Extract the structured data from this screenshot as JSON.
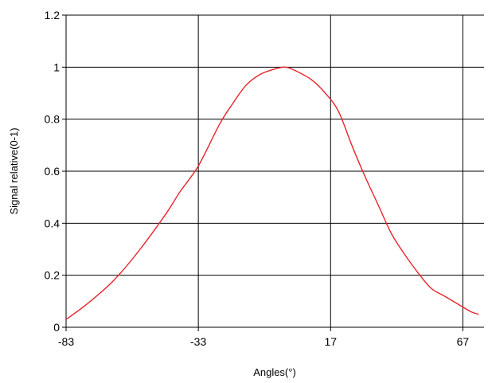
{
  "chart_data": {
    "type": "line",
    "title": "",
    "xlabel": "Angles(°)",
    "ylabel": "Signal relative(0-1)",
    "xlim": [
      -83,
      75
    ],
    "ylim": [
      0,
      1.2
    ],
    "x_ticks": [
      -83,
      -33,
      17,
      67
    ],
    "y_ticks": [
      0,
      0.2,
      0.4,
      0.6,
      0.8,
      1,
      1.2
    ],
    "grid": true,
    "legend": "none",
    "series": [
      {
        "color": "#e8232b",
        "x": [
          -83,
          -75,
          -65,
          -55,
          -45,
          -40,
          -33,
          -25,
          -20,
          -15,
          -10,
          -5,
          0,
          5,
          10,
          15,
          20,
          25,
          30,
          35,
          40,
          45,
          50,
          55,
          60,
          65,
          70,
          73
        ],
        "y": [
          0.03,
          0.09,
          0.18,
          0.3,
          0.44,
          0.52,
          0.62,
          0.78,
          0.86,
          0.93,
          0.97,
          0.99,
          1.0,
          0.98,
          0.95,
          0.9,
          0.83,
          0.7,
          0.58,
          0.47,
          0.36,
          0.28,
          0.21,
          0.15,
          0.12,
          0.09,
          0.06,
          0.05
        ]
      }
    ]
  }
}
